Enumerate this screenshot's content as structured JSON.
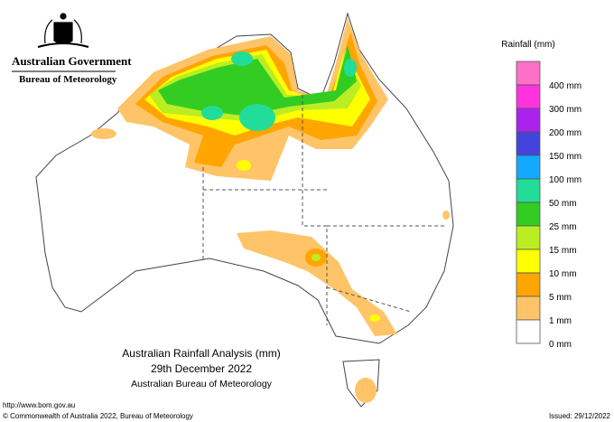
{
  "header": {
    "government": "Australian Government",
    "agency": "Bureau of Meteorology"
  },
  "legend": {
    "title": "Rainfall (mm)",
    "colors": [
      "#ff70c8",
      "#ff33dd",
      "#aa22ee",
      "#4444dd",
      "#11aaff",
      "#22dd99",
      "#33cc22",
      "#bbee22",
      "#ffff00",
      "#ffa500",
      "#ffc468",
      "#ffffff"
    ],
    "labels": [
      "400 mm",
      "300 mm",
      "200 mm",
      "150 mm",
      "100 mm",
      "50 mm",
      "25 mm",
      "15 mm",
      "10 mm",
      "5 mm",
      "1 mm",
      "0 mm"
    ]
  },
  "caption": {
    "title": "Australian Rainfall Analysis (mm)",
    "date": "29th December 2022",
    "source": "Australian Bureau of Meteorology"
  },
  "footer": {
    "url": "http://www.bom.gov.au",
    "copyright": "© Commonwealth of Australia 2022, Bureau of Meteorology",
    "issued": "Issued: 29/12/2022"
  }
}
